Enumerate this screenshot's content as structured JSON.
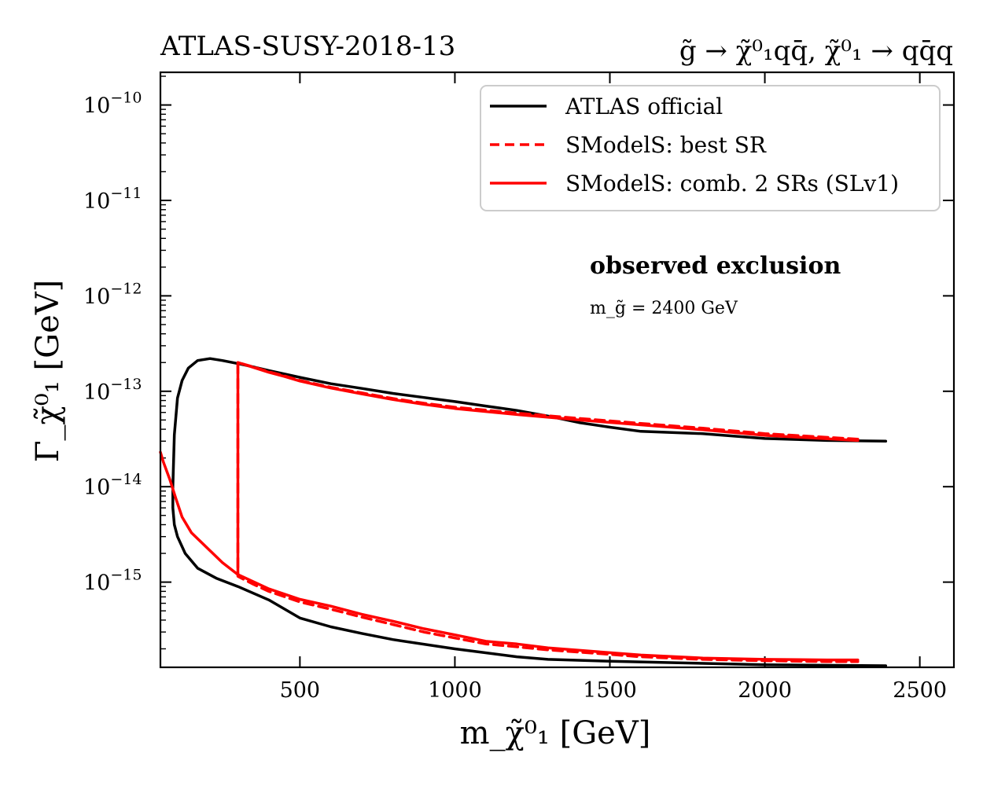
{
  "chart_data": {
    "type": "line",
    "title_left": "ATLAS-SUSY-2018-13",
    "title_right": "g̃ → χ̃⁰₁qq̄, χ̃⁰₁ → qq̄q",
    "xlabel": "m_χ̃⁰₁ [GeV]",
    "ylabel": "Γ_χ̃⁰₁ [GeV]",
    "xlim": [
      50,
      2610
    ],
    "ylim": [
      1.28e-16,
      2.2e-10
    ],
    "y_scale": "log",
    "x_ticks": [
      500,
      1000,
      1500,
      2000,
      2500
    ],
    "x_tick_labels": [
      "500",
      "1000",
      "1500",
      "2000",
      "2500"
    ],
    "y_ticks": [
      1e-15,
      1e-14,
      1e-13,
      1e-12,
      1e-11,
      1e-10
    ],
    "y_tick_labels": [
      "10−15",
      "10−14",
      "10−13",
      "10−12",
      "10−11",
      "10−10"
    ],
    "y_tick_mantissa": "10",
    "y_tick_exponents": [
      "−15",
      "−14",
      "−13",
      "−12",
      "−11",
      "−10"
    ],
    "legend_position": "top-right",
    "annotations": {
      "heading": "observed exclusion",
      "subtext": "m_g̃ = 2400 GeV"
    },
    "series": [
      {
        "name": "ATLAS official",
        "color": "#000000",
        "style": "solid",
        "x": [
          2390,
          2200,
          2000,
          1800,
          1600,
          1500,
          1400,
          1300,
          1200,
          1100,
          1000,
          900,
          800,
          700,
          600,
          500,
          400,
          350,
          300,
          250,
          210,
          170,
          140,
          120,
          105,
          95,
          90,
          90,
          95,
          105,
          130,
          170,
          230,
          300,
          400,
          500,
          600,
          700,
          800,
          1000,
          1200,
          1300,
          1500,
          2000,
          2390
        ],
        "y": [
          3e-14,
          3.05e-14,
          3.2e-14,
          3.6e-14,
          3.8e-14,
          4.2e-14,
          4.7e-14,
          5.5e-14,
          6.3e-14,
          7e-14,
          7.8e-14,
          8.6e-14,
          9.5e-14,
          1.07e-13,
          1.2e-13,
          1.4e-13,
          1.65e-13,
          1.8e-13,
          1.95e-13,
          2.1e-13,
          2.2e-13,
          2.1e-13,
          1.75e-13,
          1.3e-13,
          8.5e-14,
          3.5e-14,
          1e-14,
          6e-15,
          4e-15,
          3e-15,
          2e-15,
          1.4e-15,
          1.1e-15,
          9e-16,
          6.5e-16,
          4.2e-16,
          3.4e-16,
          2.9e-16,
          2.5e-16,
          2e-16,
          1.65e-16,
          1.55e-16,
          1.48e-16,
          1.36e-16,
          1.33e-16
        ]
      },
      {
        "name": "SModelS: best SR",
        "color": "#ff0000",
        "style": "dashed",
        "x": [
          2300,
          2000,
          1800,
          1600,
          1400,
          1200,
          1000,
          900,
          800,
          700,
          600,
          500,
          450,
          400,
          350,
          300,
          300,
          350,
          400,
          500,
          600,
          700,
          800,
          900,
          1000,
          1100,
          1200,
          1300,
          1500,
          1600,
          1800,
          2000,
          2200,
          2300
        ],
        "y": [
          3.15e-14,
          3.6e-14,
          4.1e-14,
          4.6e-14,
          5.2e-14,
          5.9e-14,
          6.8e-14,
          7.5e-14,
          8.4e-14,
          9.6e-14,
          1.1e-13,
          1.3e-13,
          1.45e-13,
          1.6e-13,
          1.8e-13,
          2e-13,
          1.15e-15,
          9.5e-16,
          8e-16,
          6.2e-16,
          5.2e-16,
          4.3e-16,
          3.6e-16,
          3e-16,
          2.6e-16,
          2.25e-16,
          2.1e-16,
          1.95e-16,
          1.75e-16,
          1.65e-16,
          1.55e-16,
          1.5e-16,
          1.47e-16,
          1.47e-16
        ]
      },
      {
        "name": "SModelS: comb. 2 SRs (SLv1)",
        "color": "#ff0000",
        "style": "solid",
        "x": [
          2300,
          2000,
          1800,
          1600,
          1400,
          1200,
          1000,
          900,
          800,
          700,
          600,
          500,
          450,
          400,
          350,
          300,
          300,
          250,
          200,
          150,
          120,
          100,
          80,
          60,
          50,
          50,
          60,
          80,
          100,
          120,
          150,
          200,
          250,
          300,
          400,
          500,
          600,
          700,
          800,
          900,
          1000,
          1100,
          1200,
          1300,
          1500,
          1600,
          1800,
          2000,
          2200,
          2300
        ],
        "y": [
          3.05e-14,
          3.45e-14,
          3.95e-14,
          4.45e-14,
          5e-14,
          5.7e-14,
          6.6e-14,
          7.3e-14,
          8.2e-14,
          9.4e-14,
          1.08e-13,
          1.28e-13,
          1.43e-13,
          1.58e-13,
          1.78e-13,
          2e-13,
          1.2e-15,
          1.6e-15,
          2.3e-15,
          3.3e-15,
          4.8e-15,
          7.5e-15,
          1.2e-14,
          1.8e-14,
          2.3e-14,
          2.3e-14,
          1.8e-14,
          1.2e-14,
          7.5e-15,
          4.8e-15,
          3.3e-15,
          2.3e-15,
          1.6e-15,
          1.2e-15,
          8.5e-16,
          6.6e-16,
          5.6e-16,
          4.6e-16,
          3.9e-16,
          3.25e-16,
          2.8e-16,
          2.4e-16,
          2.25e-16,
          2.05e-16,
          1.82e-16,
          1.72e-16,
          1.6e-16,
          1.55e-16,
          1.53e-16,
          1.53e-16
        ]
      }
    ]
  }
}
